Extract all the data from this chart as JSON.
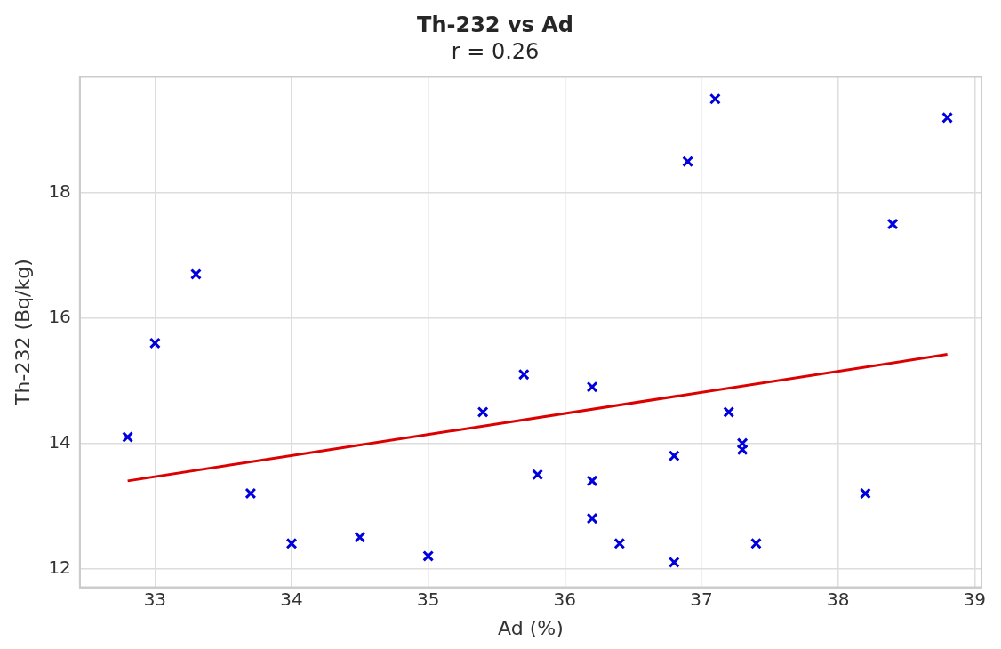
{
  "chart_data": {
    "type": "scatter",
    "title": "Th-232 vs Ad",
    "subtitle": "r = 0.26",
    "xlabel": "Ad (%)",
    "ylabel": "Th-232 (Bq/kg)",
    "xlim": [
      32.45,
      39.05
    ],
    "xticks": [
      33,
      34,
      35,
      36,
      37,
      38,
      39
    ],
    "ylim": [
      11.7,
      19.85
    ],
    "yticks": [
      12,
      14,
      16,
      18
    ],
    "grid": true,
    "marker": "cross",
    "series": [
      {
        "color": "#0000dd",
        "x": [
          32.8,
          33.0,
          33.3,
          33.7,
          34.0,
          34.5,
          35.0,
          35.4,
          35.7,
          35.8,
          36.2,
          36.2,
          36.2,
          36.4,
          36.8,
          36.8,
          36.9,
          37.1,
          37.2,
          37.3,
          37.3,
          37.4,
          38.2,
          38.4,
          38.8
        ],
        "values": [
          14.1,
          15.6,
          16.7,
          13.2,
          12.4,
          12.5,
          12.2,
          14.5,
          15.1,
          13.5,
          14.9,
          13.4,
          12.8,
          12.4,
          13.8,
          12.1,
          18.5,
          19.5,
          14.5,
          14.0,
          13.9,
          12.4,
          13.2,
          17.5,
          19.2
        ]
      },
      {
        "type": "line",
        "color": "#dd0000",
        "marker": "none",
        "x": [
          32.8,
          38.8
        ],
        "values": [
          13.4,
          15.42
        ]
      }
    ]
  }
}
